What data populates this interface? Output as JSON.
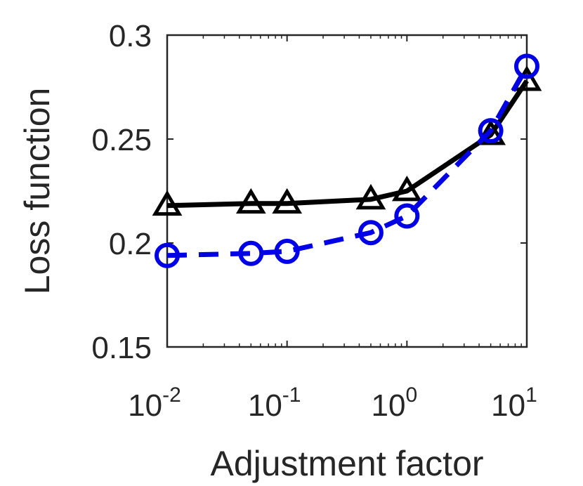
{
  "chart_data": {
    "type": "line",
    "xlabel": "Adjustment factor",
    "ylabel": "Loss function",
    "xscale": "log",
    "xlim": [
      0.01,
      10
    ],
    "ylim": [
      0.15,
      0.3
    ],
    "xticks": [
      {
        "value": 0.01,
        "base": "10",
        "exp": "-2"
      },
      {
        "value": 0.1,
        "base": "10",
        "exp": "-1"
      },
      {
        "value": 1,
        "base": "10",
        "exp": "0"
      },
      {
        "value": 10,
        "base": "10",
        "exp": "1"
      }
    ],
    "yticks": [
      {
        "value": 0.15,
        "label": "0.15"
      },
      {
        "value": 0.2,
        "label": "0.2"
      },
      {
        "value": 0.25,
        "label": "0.25"
      },
      {
        "value": 0.3,
        "label": "0.3"
      }
    ],
    "grid": false,
    "series": [
      {
        "color": "#000000",
        "line": "solid",
        "marker": "triangle",
        "x": [
          0.01,
          0.05,
          0.1,
          0.5,
          1,
          5,
          10
        ],
        "y": [
          0.218,
          0.219,
          0.219,
          0.221,
          0.225,
          0.252,
          0.278
        ]
      },
      {
        "color": "#0000e6",
        "line": "dashed",
        "marker": "circle",
        "x": [
          0.01,
          0.05,
          0.1,
          0.5,
          1,
          5,
          10
        ],
        "y": [
          0.194,
          0.195,
          0.196,
          0.205,
          0.213,
          0.254,
          0.285
        ]
      }
    ]
  }
}
